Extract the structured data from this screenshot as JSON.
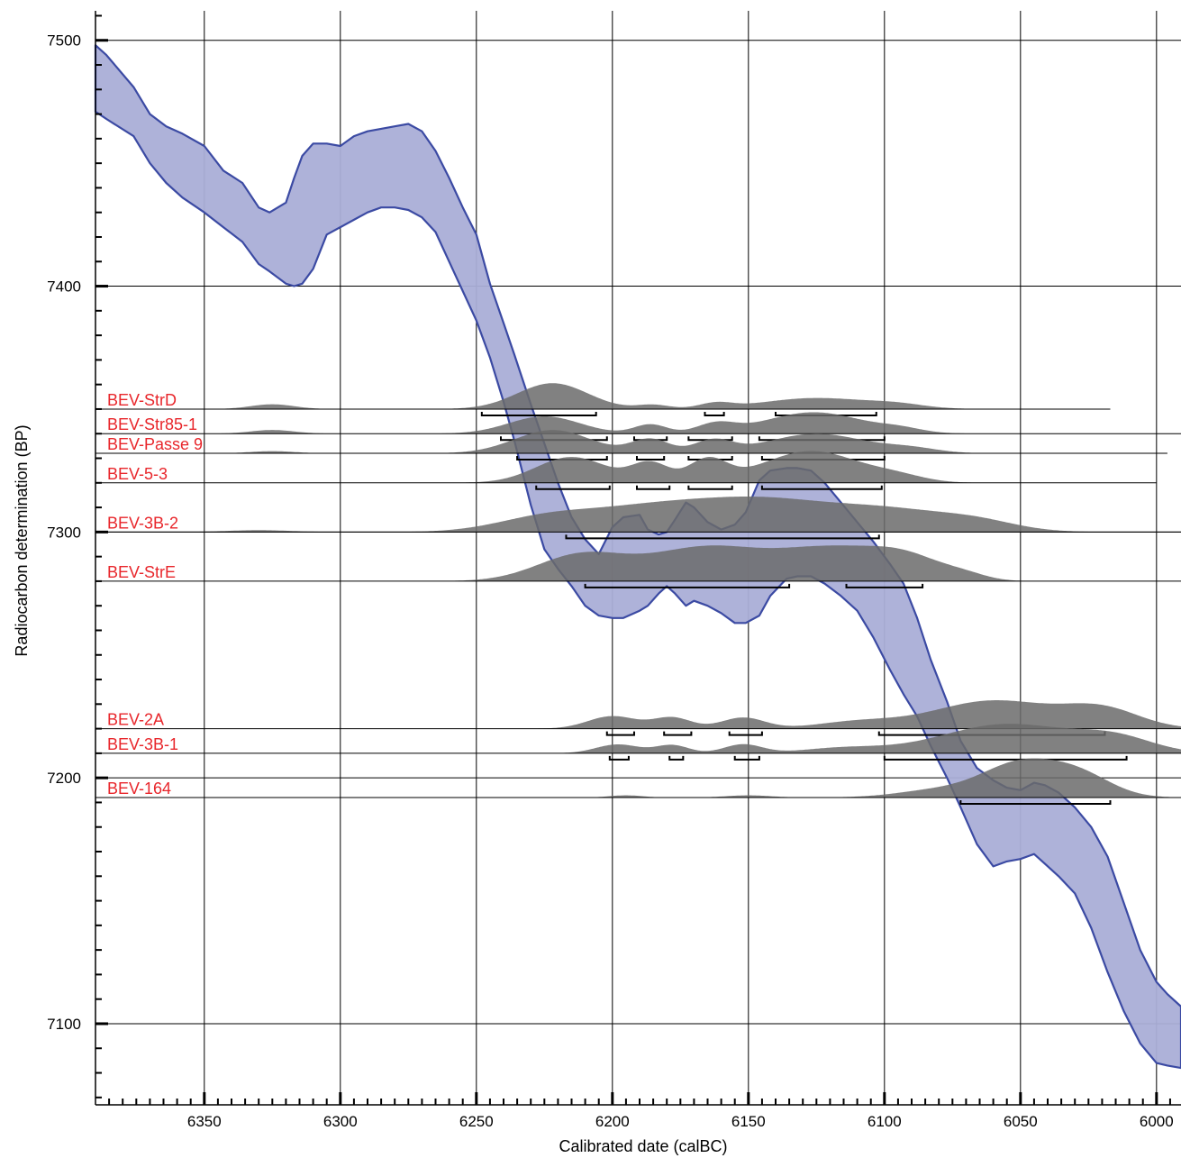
{
  "chart_data": {
    "type": "area",
    "title": "",
    "xlabel": "Calibrated date (calBC)",
    "ylabel": "Radiocarbon determination (BP)",
    "xlim": [
      6390,
      5991
    ],
    "ylim": [
      7067,
      7512
    ],
    "x_ticks": [
      "6350",
      "6300",
      "6250",
      "6200",
      "6150",
      "6100",
      "6050",
      "6000"
    ],
    "y_ticks": [
      "7500",
      "7400",
      "7300",
      "7200",
      "7100"
    ],
    "grid": true,
    "colors": {
      "curve_fill": "#aaaed7",
      "curve_line": "#3b4aa3",
      "distribution": "#6b6b6b",
      "label": "#e8262b"
    },
    "calibration_curve": {
      "x": [
        6390,
        6386,
        6376,
        6370,
        6364,
        6358,
        6350,
        6343,
        6336,
        6330,
        6326,
        6320,
        6317,
        6314,
        6310,
        6305,
        6300,
        6295,
        6290,
        6285,
        6280,
        6275,
        6270,
        6265,
        6260,
        6255,
        6250,
        6245,
        6240,
        6236,
        6230,
        6225,
        6220,
        6215,
        6210,
        6205,
        6200,
        6196,
        6190,
        6187,
        6183,
        6180,
        6177,
        6173,
        6170,
        6165,
        6160,
        6155,
        6151,
        6146,
        6142,
        6136,
        6132,
        6127,
        6122,
        6116,
        6110,
        6104,
        6098,
        6093,
        6088,
        6083,
        6077,
        6072,
        6066,
        6060,
        6055,
        6050,
        6045,
        6041,
        6036,
        6030,
        6024,
        6018,
        6012,
        6006,
        6000,
        5996,
        5991
      ],
      "upper": [
        7498,
        7494,
        7481,
        7470,
        7465,
        7462,
        7457,
        7447,
        7442,
        7432,
        7430,
        7434,
        7444,
        7453,
        7458,
        7458,
        7457,
        7461,
        7463,
        7464,
        7465,
        7466,
        7463,
        7455,
        7444,
        7432,
        7421,
        7401,
        7385,
        7372,
        7352,
        7336,
        7320,
        7306,
        7297,
        7291,
        7302,
        7306,
        7307,
        7301,
        7299,
        7300,
        7305,
        7312,
        7310,
        7304,
        7301,
        7303,
        7308,
        7321,
        7325,
        7326,
        7326,
        7325,
        7320,
        7312,
        7304,
        7296,
        7287,
        7279,
        7265,
        7248,
        7231,
        7215,
        7204,
        7199,
        7196,
        7195,
        7198,
        7197,
        7194,
        7188,
        7180,
        7168,
        7149,
        7130,
        7117,
        7112,
        7107
      ],
      "lower": [
        7471,
        7468,
        7461,
        7450,
        7442,
        7436,
        7430,
        7424,
        7418,
        7409,
        7406,
        7401,
        7400,
        7401,
        7407,
        7421,
        7424,
        7427,
        7430,
        7432,
        7432,
        7431,
        7428,
        7422,
        7410,
        7398,
        7386,
        7371,
        7353,
        7337,
        7311,
        7293,
        7285,
        7278,
        7270,
        7266,
        7265,
        7265,
        7268,
        7270,
        7275,
        7278,
        7275,
        7270,
        7272,
        7270,
        7267,
        7263,
        7263,
        7266,
        7274,
        7281,
        7282,
        7282,
        7279,
        7274,
        7268,
        7257,
        7244,
        7234,
        7225,
        7213,
        7200,
        7188,
        7173,
        7164,
        7166,
        7167,
        7169,
        7165,
        7160,
        7153,
        7139,
        7121,
        7105,
        7092,
        7084,
        7083,
        7082
      ]
    },
    "series": [
      {
        "name": "BEV-StrD",
        "baseline": 7350,
        "start": 6390,
        "end": 6017,
        "peaks": [
          [
            6325,
            1.3,
            8
          ],
          [
            6222,
            7.0,
            13
          ],
          [
            6185,
            1.1,
            6
          ],
          [
            6162,
            1.4,
            6
          ],
          [
            6125,
            3.0,
            20
          ],
          [
            6095,
            0.9,
            10
          ]
        ],
        "ranges": [
          [
            6248,
            6206
          ],
          [
            6166,
            6159
          ],
          [
            6140,
            6103
          ]
        ]
      },
      {
        "name": "BEV-Str85-1",
        "baseline": 7340,
        "start": 6390,
        "end": 5991,
        "peaks": [
          [
            6325,
            1.0,
            8
          ],
          [
            6225,
            4.7,
            13
          ],
          [
            6186,
            2.5,
            6
          ],
          [
            6162,
            2.5,
            7
          ],
          [
            6126,
            5.8,
            18
          ],
          [
            6094,
            1.0,
            8
          ]
        ],
        "ranges": [
          [
            6241,
            6202
          ],
          [
            6192,
            6180
          ],
          [
            6172,
            6156
          ],
          [
            6146,
            6100
          ]
        ]
      },
      {
        "name": "BEV-Passe 9",
        "baseline": 7332,
        "start": 6390,
        "end": 5996,
        "peaks": [
          [
            6325,
            0.6,
            8
          ],
          [
            6222,
            6.3,
            14
          ],
          [
            6186,
            3.8,
            7
          ],
          [
            6163,
            3.4,
            7
          ],
          [
            6125,
            5.3,
            18
          ],
          [
            6090,
            1.2,
            10
          ]
        ],
        "ranges": [
          [
            6235,
            6202
          ],
          [
            6191,
            6181
          ],
          [
            6172,
            6156
          ],
          [
            6145,
            6100
          ]
        ]
      },
      {
        "name": "BEV-5-3",
        "baseline": 7320,
        "start": 6390,
        "end": 6000,
        "peaks": [
          [
            6215,
            7.0,
            13
          ],
          [
            6186,
            5.2,
            7
          ],
          [
            6165,
            6.0,
            7
          ],
          [
            6127,
            8.6,
            18
          ],
          [
            6095,
            1.4,
            10
          ]
        ],
        "ranges": [
          [
            6228,
            6201
          ],
          [
            6191,
            6179
          ],
          [
            6172,
            6156
          ],
          [
            6145,
            6101
          ]
        ]
      },
      {
        "name": "BEV-3B-2",
        "baseline": 7300,
        "start": 6390,
        "end": 5991,
        "peaks": [
          [
            6330,
            0.5,
            12
          ],
          [
            6225,
            3.5,
            18
          ],
          [
            6185,
            6.5,
            24
          ],
          [
            6145,
            6.7,
            22
          ],
          [
            6100,
            6.1,
            25
          ],
          [
            6065,
            1.8,
            14
          ]
        ],
        "ranges": [
          [
            6217,
            6102
          ]
        ]
      },
      {
        "name": "BEV-StrE",
        "baseline": 7280,
        "start": 6390,
        "end": 5991,
        "peaks": [
          [
            6212,
            6.8,
            16
          ],
          [
            6165,
            9.2,
            22
          ],
          [
            6120,
            7.7,
            18
          ],
          [
            6092,
            6.0,
            14
          ],
          [
            6070,
            1.2,
            8
          ]
        ],
        "ranges": [
          [
            6210,
            6135
          ],
          [
            6114,
            6086
          ]
        ]
      },
      {
        "name": "BEV-2A",
        "baseline": 7220,
        "start": 6390,
        "end": 5991,
        "peaks": [
          [
            6200,
            3.4,
            9
          ],
          [
            6178,
            3.0,
            7
          ],
          [
            6152,
            3.0,
            8
          ],
          [
            6110,
            1.8,
            15
          ],
          [
            6060,
            7.6,
            22
          ],
          [
            6020,
            5.0,
            14
          ]
        ],
        "ranges": [
          [
            6202,
            6192
          ],
          [
            6181,
            6171
          ],
          [
            6157,
            6145
          ],
          [
            6102,
            6019
          ]
        ]
      },
      {
        "name": "BEV-3B-1",
        "baseline": 7210,
        "start": 6390,
        "end": 5991,
        "peaks": [
          [
            6198,
            2.4,
            8
          ],
          [
            6178,
            2.2,
            6
          ],
          [
            6152,
            2.4,
            7
          ],
          [
            6115,
            1.4,
            15
          ],
          [
            6055,
            7.9,
            24
          ],
          [
            6015,
            3.7,
            14
          ]
        ],
        "ranges": [
          [
            6201,
            6194
          ],
          [
            6179,
            6174
          ],
          [
            6155,
            6146
          ],
          [
            6100,
            6011
          ]
        ]
      },
      {
        "name": "BEV-164",
        "baseline": 7192,
        "start": 6260,
        "end": 5991,
        "peaks": [
          [
            6195,
            0.6,
            6
          ],
          [
            6150,
            0.6,
            8
          ],
          [
            6080,
            2.0,
            15
          ],
          [
            6050,
            9.0,
            14
          ],
          [
            6028,
            5.5,
            12
          ]
        ],
        "ranges": [
          [
            6072,
            6017
          ]
        ]
      }
    ]
  }
}
